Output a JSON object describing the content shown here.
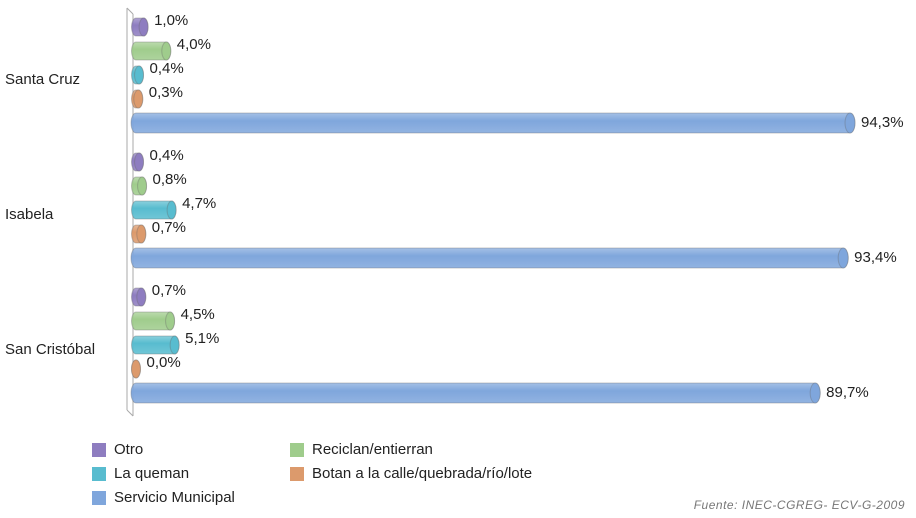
{
  "chart_data": {
    "type": "bar",
    "orientation": "horizontal",
    "categories": [
      "Santa Cruz",
      "Isabela",
      "San Cristóbal"
    ],
    "series": [
      {
        "name": "Otro",
        "color": "#8e7dc0",
        "values": [
          1.0,
          0.4,
          0.7
        ],
        "value_labels": [
          "1,0%",
          "0,4%",
          "0,7%"
        ]
      },
      {
        "name": "Reciclan/entierran",
        "color": "#9fcc8c",
        "values": [
          4.0,
          0.8,
          4.5
        ],
        "value_labels": [
          "4,0%",
          "0,8%",
          "4,5%"
        ]
      },
      {
        "name": "La queman",
        "color": "#58bccf",
        "values": [
          0.4,
          4.7,
          5.1
        ],
        "value_labels": [
          "0,4%",
          "4,7%",
          "5,1%"
        ]
      },
      {
        "name": "Botan a la calle/quebrada/río/lote",
        "color": "#dc9a6c",
        "values": [
          0.3,
          0.7,
          0.0
        ],
        "value_labels": [
          "0,3%",
          "0,7%",
          "0,0%"
        ]
      },
      {
        "name": "Servicio Municipal",
        "color": "#7fa6dc",
        "values": [
          94.3,
          93.4,
          89.7
        ],
        "value_labels": [
          "94,3%",
          "93,4%",
          "89,7%"
        ]
      }
    ],
    "legend": "bottom",
    "source": "Fuente: INEC-CGREG- ECV-G-2009"
  }
}
